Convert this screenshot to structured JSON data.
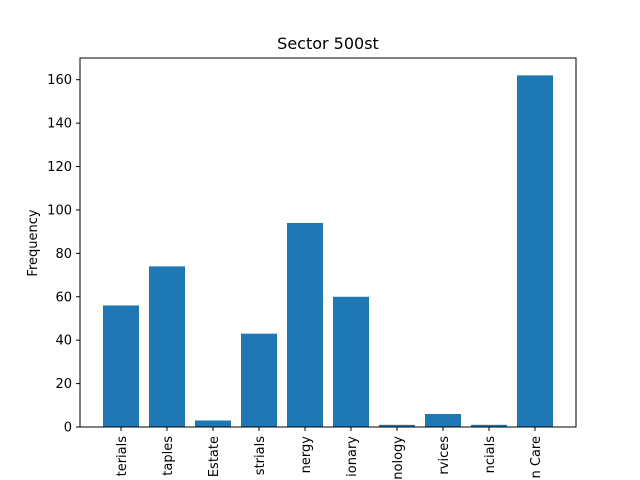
{
  "chart_data": {
    "type": "bar",
    "title": "Sector 500st",
    "xlabel": "",
    "ylabel": "Frequency",
    "categories": [
      "terials",
      "taples",
      "Estate",
      "strials",
      "nergy",
      "ionary",
      "nology",
      "rvices",
      "ncials",
      "n Care"
    ],
    "values": [
      56,
      74,
      3,
      43,
      94,
      60,
      1,
      6,
      1,
      162
    ],
    "ylim": [
      0,
      170
    ],
    "yticks": [
      0,
      20,
      40,
      60,
      80,
      100,
      120,
      140,
      160
    ],
    "bar_color": "#1f77b4",
    "grid": false,
    "legend": "none"
  }
}
